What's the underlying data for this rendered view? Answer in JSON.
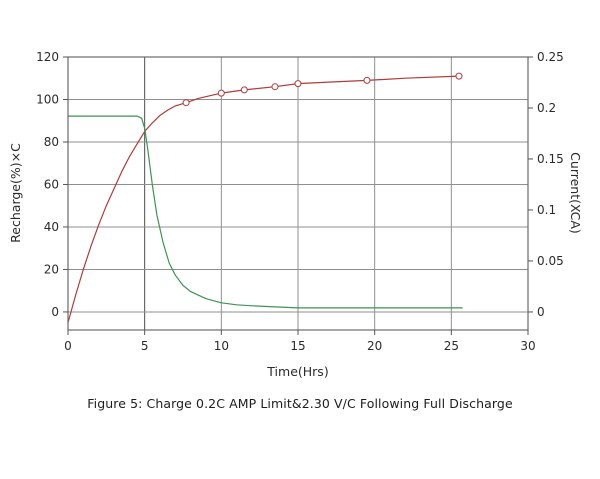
{
  "chart_data": {
    "type": "line",
    "title": "Figure 5: Charge 0.2C AMP Limit&2.30 V/C Following Full Discharge",
    "legend": "none",
    "grid": true,
    "x_axis": {
      "label": "Time(Hrs)",
      "range": [
        0,
        30
      ],
      "tick_values": [
        0,
        5,
        10,
        15,
        20,
        25,
        30
      ],
      "tick_labels": [
        "0",
        "5",
        "10",
        "15",
        "20",
        "25",
        "30"
      ],
      "emphasized_gridline": 5
    },
    "left_axis": {
      "label": "Recharge(%)×C",
      "range": [
        -8.5,
        120
      ],
      "tick_values": [
        0,
        20,
        40,
        60,
        80,
        100,
        120
      ],
      "tick_labels": [
        "0",
        "20",
        "40",
        "60",
        "80",
        "100",
        "120"
      ]
    },
    "right_axis": {
      "label": "Current(XCA)",
      "range": [
        -0.0177,
        0.25
      ],
      "tick_values": [
        0,
        0.05,
        0.1,
        0.15,
        0.2,
        0.25
      ],
      "tick_labels": [
        "0",
        "0.05",
        "0.1",
        "0.15",
        "0.2",
        "0.25"
      ]
    },
    "series": [
      {
        "name": "Recharge(%)×C",
        "axis": "left",
        "color": "#b23a3a",
        "marker": "circle",
        "points": [
          [
            0,
            -5
          ],
          [
            0.5,
            8
          ],
          [
            1,
            20
          ],
          [
            1.5,
            31
          ],
          [
            2,
            41
          ],
          [
            2.5,
            50
          ],
          [
            3,
            58
          ],
          [
            3.5,
            66
          ],
          [
            4,
            73
          ],
          [
            4.5,
            79
          ],
          [
            5,
            85
          ],
          [
            5.5,
            89
          ],
          [
            6,
            92.5
          ],
          [
            6.5,
            95
          ],
          [
            7,
            97
          ],
          [
            7.7,
            98.5
          ],
          [
            8.5,
            100.5
          ],
          [
            10,
            103
          ],
          [
            11.5,
            104.5
          ],
          [
            13.5,
            106
          ],
          [
            15,
            107.5
          ],
          [
            17,
            108.2
          ],
          [
            19.5,
            109
          ],
          [
            22,
            110
          ],
          [
            25.5,
            111
          ]
        ],
        "marker_points": [
          [
            7.7,
            98.5
          ],
          [
            10,
            103
          ],
          [
            11.5,
            104.5
          ],
          [
            13.5,
            106
          ],
          [
            15,
            107.5
          ],
          [
            19.5,
            109
          ],
          [
            25.5,
            111
          ]
        ]
      },
      {
        "name": "Current(XCA)",
        "axis": "right",
        "color": "#3d9455",
        "marker": "none",
        "points": [
          [
            0,
            0.192
          ],
          [
            4.5,
            0.192
          ],
          [
            4.8,
            0.19
          ],
          [
            5,
            0.18
          ],
          [
            5.2,
            0.16
          ],
          [
            5.5,
            0.125
          ],
          [
            5.8,
            0.095
          ],
          [
            6.2,
            0.068
          ],
          [
            6.6,
            0.048
          ],
          [
            7,
            0.036
          ],
          [
            7.5,
            0.026
          ],
          [
            8,
            0.02
          ],
          [
            9,
            0.013
          ],
          [
            10,
            0.009
          ],
          [
            11,
            0.007
          ],
          [
            12,
            0.006
          ],
          [
            13.5,
            0.005
          ],
          [
            15,
            0.004
          ],
          [
            17,
            0.004
          ],
          [
            20,
            0.004
          ],
          [
            23,
            0.004
          ],
          [
            25.7,
            0.004
          ]
        ],
        "marker_points": []
      }
    ]
  }
}
